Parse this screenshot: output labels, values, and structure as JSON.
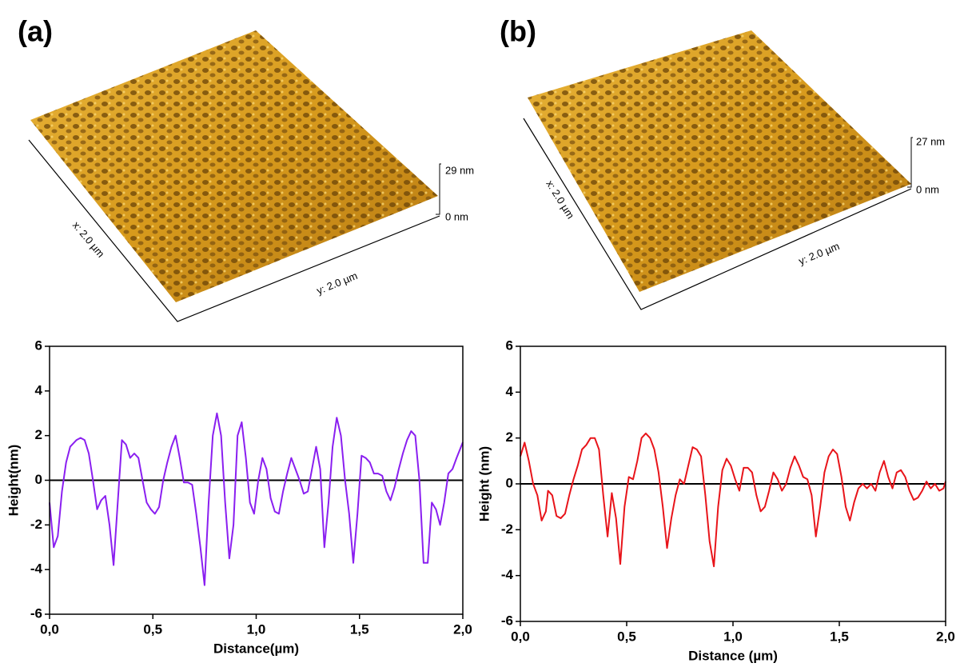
{
  "panel_labels": [
    "(a)",
    "(b)"
  ],
  "afm_images": [
    {
      "x_label": "x: 2.0 µm",
      "y_label": "y: 2.0 µm",
      "z_max": "29 nm",
      "z_min": "0 nm"
    },
    {
      "x_label": "x: 2.0 µm",
      "y_label": "y: 2.0 µm",
      "z_max": "27 nm",
      "z_min": "0 nm"
    }
  ],
  "chart_data": [
    {
      "type": "line",
      "xlabel": "Distance(µm)",
      "ylabel": "Height(nm)",
      "color": "#8a1ff0",
      "zero_line": true,
      "xlim": [
        0,
        2
      ],
      "ylim": [
        -6,
        6
      ],
      "xticks": [
        {
          "value": 0,
          "label": "0,0"
        },
        {
          "value": 0.5,
          "label": "0,5"
        },
        {
          "value": 1,
          "label": "1,0"
        },
        {
          "value": 1.5,
          "label": "1,5"
        },
        {
          "value": 2,
          "label": "2,0"
        }
      ],
      "yticks": [
        -6,
        -4,
        -2,
        0,
        2,
        4,
        6
      ],
      "x": [
        0,
        0.02,
        0.04,
        0.06,
        0.08,
        0.1,
        0.13,
        0.15,
        0.17,
        0.19,
        0.21,
        0.23,
        0.25,
        0.27,
        0.29,
        0.31,
        0.33,
        0.35,
        0.37,
        0.39,
        0.41,
        0.43,
        0.45,
        0.47,
        0.49,
        0.51,
        0.53,
        0.55,
        0.57,
        0.59,
        0.61,
        0.63,
        0.65,
        0.67,
        0.69,
        0.71,
        0.73,
        0.75,
        0.77,
        0.79,
        0.81,
        0.83,
        0.85,
        0.87,
        0.89,
        0.91,
        0.93,
        0.95,
        0.97,
        0.99,
        1.01,
        1.03,
        1.05,
        1.07,
        1.09,
        1.11,
        1.13,
        1.15,
        1.17,
        1.19,
        1.21,
        1.23,
        1.25,
        1.27,
        1.29,
        1.31,
        1.33,
        1.35,
        1.37,
        1.39,
        1.41,
        1.43,
        1.45,
        1.47,
        1.49,
        1.51,
        1.53,
        1.55,
        1.57,
        1.59,
        1.61,
        1.63,
        1.65,
        1.67,
        1.69,
        1.71,
        1.73,
        1.75,
        1.77,
        1.79,
        1.81,
        1.83,
        1.85,
        1.87,
        1.89,
        1.91,
        1.93,
        1.95,
        1.97,
        2.0
      ],
      "values": [
        -1,
        -3.0,
        -2.5,
        -0.5,
        0.8,
        1.5,
        1.8,
        1.9,
        1.8,
        1.2,
        0,
        -1.3,
        -0.9,
        -0.7,
        -2.0,
        -3.8,
        -1.0,
        1.8,
        1.6,
        1.0,
        1.2,
        1.0,
        0.0,
        -1.0,
        -1.3,
        -1.5,
        -1.2,
        0.0,
        0.8,
        1.5,
        2.0,
        1.0,
        -0.1,
        -0.1,
        -0.2,
        -1.5,
        -3.0,
        -4.7,
        -1.0,
        2.0,
        3.0,
        2.0,
        -1.0,
        -3.5,
        -2.0,
        2.0,
        2.6,
        1.0,
        -1.0,
        -1.5,
        0.0,
        1.0,
        0.5,
        -0.8,
        -1.4,
        -1.5,
        -0.5,
        0.3,
        1.0,
        0.5,
        0.0,
        -0.6,
        -0.5,
        0.5,
        1.5,
        0.5,
        -3.0,
        -1.0,
        1.5,
        2.8,
        2.0,
        0.0,
        -1.5,
        -3.7,
        -1.5,
        1.1,
        1.0,
        0.8,
        0.3,
        0.3,
        0.2,
        -0.5,
        -0.9,
        -0.3,
        0.5,
        1.2,
        1.8,
        2.2,
        2.0,
        0.0,
        -3.7,
        -3.7,
        -1.0,
        -1.3,
        -2.0,
        -1.0,
        0.3,
        0.5,
        1.0,
        1.7
      ]
    },
    {
      "type": "line",
      "xlabel": "Distance (µm)",
      "ylabel": "Height (nm)",
      "color": "#e8141a",
      "zero_line": true,
      "xlim": [
        0,
        2
      ],
      "ylim": [
        -6,
        6
      ],
      "xticks": [
        {
          "value": 0,
          "label": "0,0"
        },
        {
          "value": 0.5,
          "label": "0,5"
        },
        {
          "value": 1,
          "label": "1,0"
        },
        {
          "value": 1.5,
          "label": "1,5"
        },
        {
          "value": 2,
          "label": "2,0"
        }
      ],
      "yticks": [
        -6,
        -4,
        -2,
        0,
        2,
        4,
        6
      ],
      "x": [
        0,
        0.02,
        0.04,
        0.06,
        0.08,
        0.1,
        0.12,
        0.13,
        0.15,
        0.17,
        0.19,
        0.21,
        0.23,
        0.25,
        0.27,
        0.29,
        0.31,
        0.33,
        0.35,
        0.37,
        0.39,
        0.41,
        0.43,
        0.45,
        0.47,
        0.49,
        0.51,
        0.53,
        0.55,
        0.57,
        0.59,
        0.61,
        0.63,
        0.65,
        0.67,
        0.69,
        0.71,
        0.73,
        0.75,
        0.77,
        0.79,
        0.81,
        0.83,
        0.85,
        0.87,
        0.89,
        0.91,
        0.93,
        0.95,
        0.97,
        0.99,
        1.01,
        1.03,
        1.05,
        1.07,
        1.09,
        1.11,
        1.13,
        1.15,
        1.17,
        1.19,
        1.21,
        1.23,
        1.25,
        1.27,
        1.29,
        1.31,
        1.33,
        1.35,
        1.37,
        1.39,
        1.41,
        1.43,
        1.45,
        1.47,
        1.49,
        1.51,
        1.53,
        1.55,
        1.57,
        1.59,
        1.61,
        1.63,
        1.65,
        1.67,
        1.69,
        1.71,
        1.73,
        1.75,
        1.77,
        1.79,
        1.81,
        1.83,
        1.85,
        1.87,
        1.89,
        1.91,
        1.93,
        1.95,
        1.97,
        1.99,
        2.0
      ],
      "values": [
        1.2,
        1.8,
        1.0,
        0.0,
        -0.5,
        -1.6,
        -1.2,
        -0.3,
        -0.5,
        -1.4,
        -1.5,
        -1.3,
        -0.5,
        0.2,
        0.8,
        1.5,
        1.7,
        2.0,
        2.0,
        1.5,
        -0.5,
        -2.3,
        -0.4,
        -1.5,
        -3.5,
        -1.0,
        0.3,
        0.2,
        1.0,
        2.0,
        2.2,
        2.0,
        1.5,
        0.5,
        -1.0,
        -2.8,
        -1.5,
        -0.5,
        0.2,
        0.0,
        0.8,
        1.6,
        1.5,
        1.2,
        -0.5,
        -2.5,
        -3.6,
        -1.0,
        0.6,
        1.1,
        0.8,
        0.2,
        -0.3,
        0.7,
        0.7,
        0.5,
        -0.5,
        -1.2,
        -1.0,
        -0.3,
        0.5,
        0.2,
        -0.3,
        0.0,
        0.7,
        1.2,
        0.8,
        0.3,
        0.2,
        -0.5,
        -2.3,
        -1.0,
        0.5,
        1.2,
        1.5,
        1.3,
        0.3,
        -1.0,
        -1.6,
        -0.8,
        -0.2,
        0.0,
        -0.2,
        0.0,
        -0.3,
        0.5,
        1.0,
        0.3,
        -0.2,
        0.5,
        0.6,
        0.3,
        -0.3,
        -0.7,
        -0.6,
        -0.3,
        0.1,
        -0.2,
        0.0,
        -0.3,
        -0.2,
        0.1
      ]
    }
  ]
}
